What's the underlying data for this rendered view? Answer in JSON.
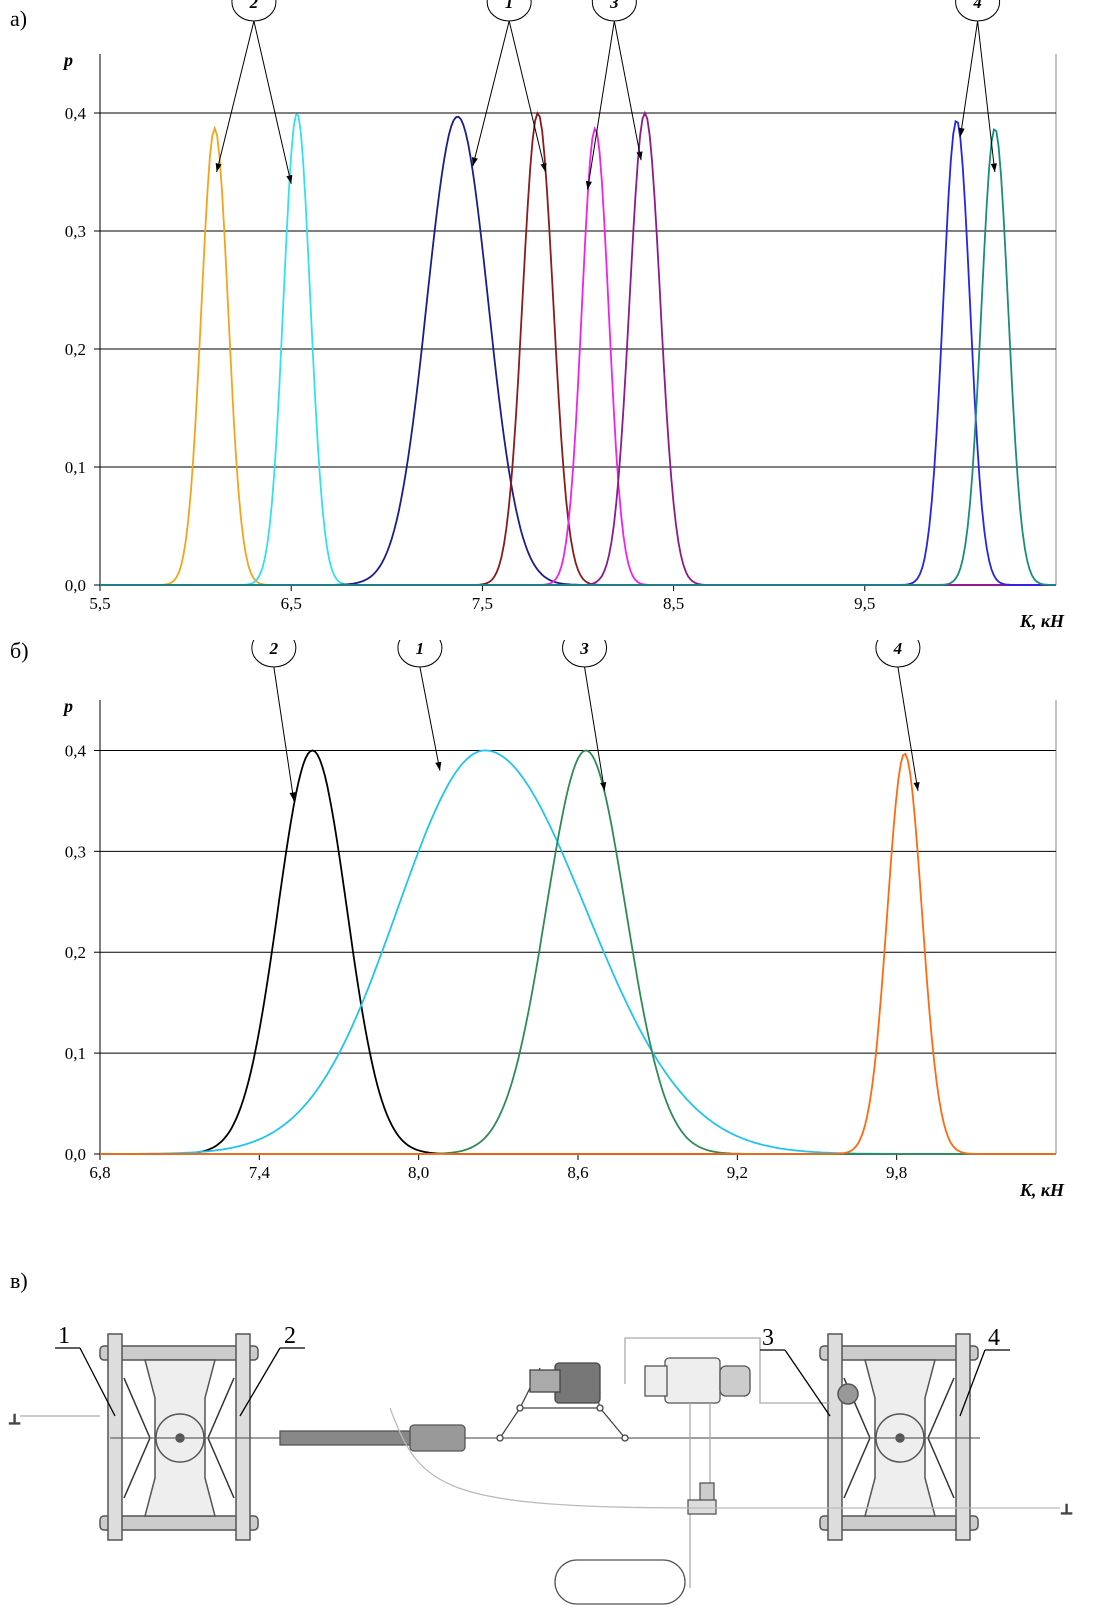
{
  "panel_labels": {
    "a": "а)",
    "b": "б)",
    "c": "в)"
  },
  "chart_data": [
    {
      "type": "line",
      "ylabel": "p",
      "xlabel": "K, кН",
      "xlim": [
        5.5,
        10.5
      ],
      "ylim": [
        0.0,
        0.45
      ],
      "x_ticks": [
        5.5,
        6.5,
        7.5,
        8.5,
        9.5
      ],
      "x_tick_labels": [
        "5,5",
        "6,5",
        "7,5",
        "8,5",
        "9,5"
      ],
      "y_ticks": [
        0.0,
        0.1,
        0.2,
        0.3,
        0.4
      ],
      "y_tick_labels": [
        "0,0",
        "0,1",
        "0,2",
        "0,3",
        "0,4"
      ],
      "grid": "horizontal",
      "series": [
        {
          "mean": 6.1,
          "sd": 0.07,
          "peak": 0.387,
          "color": "#f5a31a"
        },
        {
          "mean": 6.53,
          "sd": 0.07,
          "peak": 0.4,
          "color": "#33e0ee"
        },
        {
          "mean": 7.37,
          "sd": 0.16,
          "peak": 0.397,
          "color": "#1c1c8c"
        },
        {
          "mean": 7.79,
          "sd": 0.08,
          "peak": 0.4,
          "color": "#8b1a1a"
        },
        {
          "mean": 8.09,
          "sd": 0.07,
          "peak": 0.387,
          "color": "#ee22ee"
        },
        {
          "mean": 8.35,
          "sd": 0.08,
          "peak": 0.4,
          "color": "#8c1a8c"
        },
        {
          "mean": 9.98,
          "sd": 0.07,
          "peak": 0.394,
          "color": "#2424e8"
        },
        {
          "mean": 10.18,
          "sd": 0.07,
          "peak": 0.387,
          "color": "#1a8c7c"
        }
      ],
      "callouts": [
        {
          "label": "2",
          "targets": [
            [
              6.11,
              0.35
            ],
            [
              6.5,
              0.34
            ]
          ]
        },
        {
          "label": "1",
          "targets": [
            [
              7.45,
              0.355
            ],
            [
              7.83,
              0.35
            ]
          ]
        },
        {
          "label": "3",
          "targets": [
            [
              8.05,
              0.335
            ],
            [
              8.33,
              0.36
            ]
          ]
        },
        {
          "label": "4",
          "targets": [
            [
              10.0,
              0.38
            ],
            [
              10.18,
              0.35
            ]
          ]
        }
      ]
    },
    {
      "type": "line",
      "ylabel": "p",
      "xlabel": "K, кН",
      "xlim": [
        6.8,
        10.4
      ],
      "ylim": [
        0.0,
        0.45
      ],
      "x_ticks": [
        6.8,
        7.4,
        8.0,
        8.6,
        9.2,
        9.8
      ],
      "x_tick_labels": [
        "6,8",
        "7,4",
        "8,0",
        "8,6",
        "9,2",
        "9,8"
      ],
      "y_ticks": [
        0.0,
        0.1,
        0.2,
        0.3,
        0.4
      ],
      "y_tick_labels": [
        "0,0",
        "0,1",
        "0,2",
        "0,3",
        "0,4"
      ],
      "grid": "horizontal",
      "series": [
        {
          "mean": 7.6,
          "sd": 0.13,
          "peak": 0.4,
          "color": "#000000"
        },
        {
          "mean": 8.25,
          "sd_left": 0.33,
          "sd_right": 0.38,
          "peak": 0.4,
          "color": "#22c4ee"
        },
        {
          "mean": 8.63,
          "sd": 0.15,
          "peak": 0.4,
          "color": "#2e8b57"
        },
        {
          "mean": 9.83,
          "sd": 0.065,
          "peak": 0.397,
          "color": "#ff6a10"
        }
      ],
      "callouts": [
        {
          "label": "2",
          "targets": [
            [
              7.53,
              0.35
            ]
          ]
        },
        {
          "label": "1",
          "targets": [
            [
              8.08,
              0.38
            ]
          ]
        },
        {
          "label": "3",
          "targets": [
            [
              8.7,
              0.36
            ]
          ]
        },
        {
          "label": "4",
          "targets": [
            [
              9.88,
              0.36
            ]
          ]
        }
      ]
    }
  ],
  "diagram": {
    "labels": [
      "1",
      "2",
      "3",
      "4"
    ]
  }
}
